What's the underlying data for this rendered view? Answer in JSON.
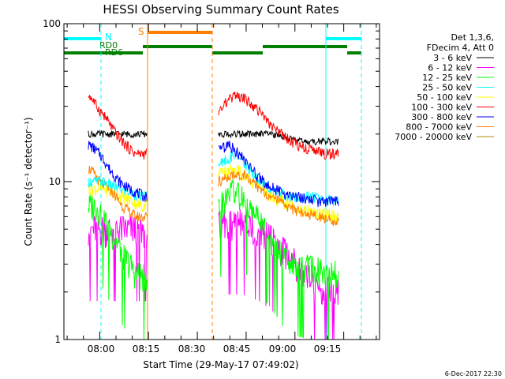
{
  "chart_data": {
    "type": "line",
    "title": "HESSI Observing Summary Count Rates",
    "xlabel": "Start Time (29-May-17 07:49:02)",
    "ylabel": "Count Rate (s⁻¹ detector⁻¹)",
    "yscale": "log",
    "ylim": [
      1,
      100
    ],
    "xlim_minutes": [
      0,
      97
    ],
    "x_ticks": [
      "08:00",
      "08:15",
      "08:30",
      "08:45",
      "09:00",
      "09:15"
    ],
    "y_ticks": [
      "1",
      "10",
      "100"
    ],
    "date_stamp": "6-Dec-2017 22:30",
    "legend_header": [
      "Det 1,3,6,",
      "FDecim 4, Att 0"
    ],
    "colors": {
      "3-6": "#000000",
      "6-12": "#ff00ff",
      "12-25": "#00ff00",
      "25-50": "#00ffff",
      "50-100": "#ffff00",
      "100-300": "#ff0000",
      "300-800": "#0000ff",
      "800-7000": "#ff8000",
      "7000-20000": "#b8860b",
      "saa": "#00ffff",
      "night": "#ff8000",
      "flag": "#007f00"
    },
    "segments": [
      [
        7.5,
        25.5
      ],
      [
        47.5,
        84.5
      ]
    ],
    "series": [
      {
        "name": "3 - 6 keV",
        "key": "3-6",
        "x": [
          8,
          11,
          15,
          19,
          24,
          48,
          52,
          57,
          63,
          68,
          74,
          78,
          84
        ],
        "y": [
          20,
          20,
          20,
          20,
          20,
          20,
          20,
          20,
          20,
          19,
          18,
          18,
          18
        ]
      },
      {
        "name": "6 - 12 keV",
        "key": "6-12",
        "x": [
          8,
          12,
          17,
          24,
          48,
          55,
          60,
          66,
          72,
          78,
          84
        ],
        "y": [
          5,
          5,
          5,
          5,
          5.5,
          5.5,
          5,
          4,
          3,
          2.2,
          2
        ]
      },
      {
        "name": "12 - 25 keV",
        "key": "12-25",
        "x": [
          8,
          10,
          14,
          18,
          22,
          25,
          48,
          52,
          57,
          62,
          67,
          72,
          78,
          84
        ],
        "y": [
          7,
          7,
          5,
          3.5,
          2.6,
          2.5,
          7,
          9,
          7,
          5,
          3.5,
          3,
          2.8,
          2.7
        ]
      },
      {
        "name": "25 - 50 keV",
        "key": "25-50",
        "x": [
          8,
          12,
          17,
          24,
          48,
          53,
          58,
          64,
          70,
          76,
          84
        ],
        "y": [
          10,
          10,
          9,
          8,
          13,
          15,
          11,
          9,
          8,
          8,
          7.5
        ]
      },
      {
        "name": "50 - 100 keV",
        "key": "50-100",
        "x": [
          8,
          12,
          18,
          24,
          48,
          53,
          58,
          64,
          70,
          76,
          84
        ],
        "y": [
          9,
          9,
          8,
          7,
          11,
          12,
          10,
          8,
          7,
          6.5,
          6
        ]
      },
      {
        "name": "100 - 300 keV",
        "key": "100-300",
        "x": [
          8,
          10,
          13,
          16,
          19,
          22,
          25,
          48,
          50,
          53,
          56,
          60,
          64,
          68,
          72,
          76,
          80,
          84
        ],
        "y": [
          35,
          30,
          25,
          20,
          17,
          15,
          15,
          28,
          32,
          35,
          33,
          28,
          22,
          19,
          17,
          16,
          15,
          15
        ]
      },
      {
        "name": "300 - 800 keV",
        "key": "300-800",
        "x": [
          8,
          11,
          14,
          17,
          20,
          25,
          48,
          51,
          55,
          59,
          63,
          67,
          72,
          78,
          84
        ],
        "y": [
          17,
          15,
          12,
          10,
          9,
          8,
          16,
          17,
          14,
          11,
          9.5,
          8.5,
          8,
          7.5,
          7.5
        ]
      },
      {
        "name": "800 - 7000 keV",
        "key": "800-7000",
        "x": [
          8,
          11,
          14,
          18,
          22,
          25,
          48,
          52,
          56,
          60,
          64,
          68,
          72,
          78,
          84
        ],
        "y": [
          12,
          10,
          9,
          7,
          6,
          6,
          10,
          11,
          11,
          9,
          8,
          7,
          6.5,
          6,
          5.5
        ]
      },
      {
        "name": "7000 - 20000 keV",
        "key": "7000-20000",
        "x": [
          8,
          25,
          48,
          84
        ],
        "y": [
          1,
          1,
          1,
          1
        ]
      }
    ],
    "top_labels": [
      "S",
      "N",
      "RD0",
      "RD6"
    ]
  }
}
